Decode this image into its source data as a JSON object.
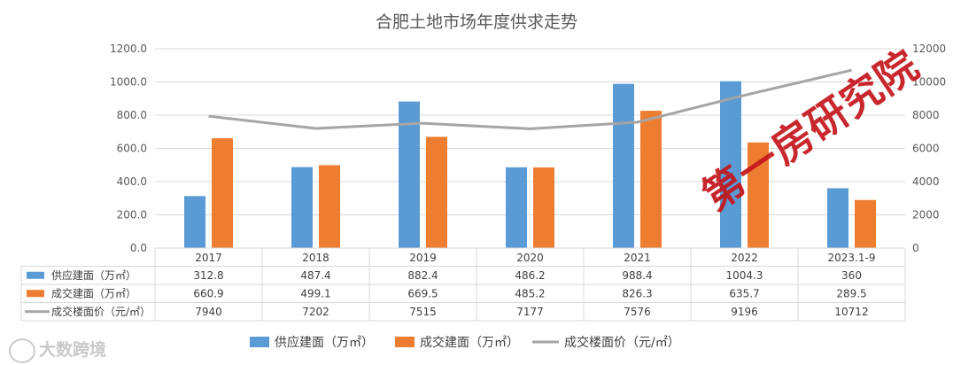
{
  "chart_data": {
    "type": "bar",
    "title": "合肥土地市场年度供求走势",
    "categories": [
      "2017",
      "2018",
      "2019",
      "2020",
      "2021",
      "2022",
      "2023.1-9"
    ],
    "series": [
      {
        "name": "供应建面（万㎡）",
        "type": "bar",
        "axis": "left",
        "color": "#5b9bd5",
        "values": [
          312.8,
          487.4,
          882.4,
          486.2,
          988.4,
          1004.3,
          360
        ],
        "labels": [
          "312.8",
          "487.4",
          "882.4",
          "486.2",
          "988.4",
          "1004.3",
          "360"
        ]
      },
      {
        "name": "成交建面（万㎡）",
        "type": "bar",
        "axis": "left",
        "color": "#ed7d31",
        "values": [
          660.9,
          499.1,
          669.5,
          485.2,
          826.3,
          635.7,
          289.5
        ],
        "labels": [
          "660.9",
          "499.1",
          "669.5",
          "485.2",
          "826.3",
          "635.7",
          "289.5"
        ]
      },
      {
        "name": "成交楼面价（元/㎡）",
        "type": "line",
        "axis": "right",
        "color": "#a5a5a5",
        "values": [
          7940,
          7202,
          7515,
          7177,
          7576,
          9196,
          10712
        ],
        "labels": [
          "7940",
          "7202",
          "7515",
          "7177",
          "7576",
          "9196",
          "10712"
        ]
      }
    ],
    "y_left": {
      "range": [
        0,
        1200
      ],
      "ticks": [
        "0.0",
        "200.0",
        "400.0",
        "600.0",
        "800.0",
        "1000.0",
        "1200.0"
      ]
    },
    "y_right": {
      "range": [
        0,
        12000
      ],
      "ticks": [
        "0",
        "2000",
        "4000",
        "6000",
        "8000",
        "10000",
        "12000"
      ]
    },
    "grid": true,
    "legend": "bottom",
    "data_table": true
  },
  "watermark": "第一房研究院",
  "logo": "大数跨境"
}
